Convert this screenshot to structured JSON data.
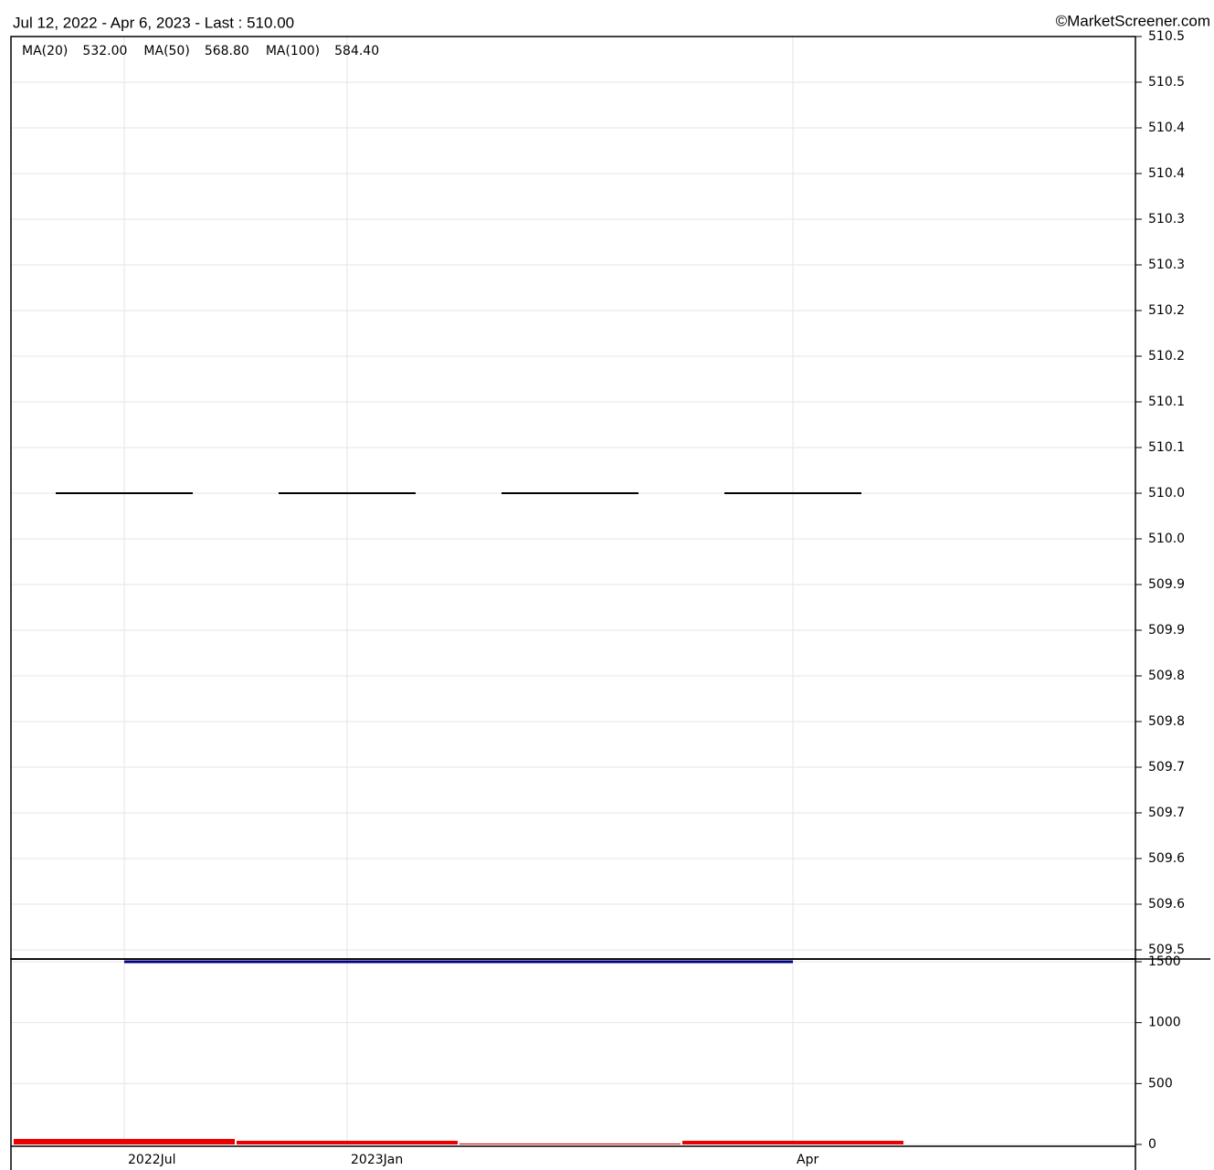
{
  "header": {
    "title": "Jul 12, 2022 - Apr 6, 2023 - Last : 510.00",
    "credit": "©MarketScreener.com"
  },
  "legend": [
    {
      "name": "MA(20)",
      "value": "532.00",
      "name_color": "#6633cc",
      "color": "#3333ee"
    },
    {
      "name": "MA(50)",
      "value": "568.80",
      "name_color": "#ee33ee",
      "color": "#ee33ee"
    },
    {
      "name": "MA(100)",
      "value": "584.40",
      "name_color": "#ffaa44",
      "color": "#ffaa44"
    }
  ],
  "chart_data": [
    {
      "type": "ohlc",
      "values": [
        510,
        510,
        510,
        510
      ],
      "color": "#000000",
      "ylim": [
        509.5,
        510.5
      ],
      "yticks": [
        509.5,
        {
          "value": 509.55,
          "label": "509.6"
        },
        509.6,
        {
          "value": 509.65,
          "label": "509.7"
        },
        509.7,
        {
          "value": 509.75,
          "label": "509.8"
        },
        509.8,
        {
          "value": 509.85,
          "label": "509.9"
        },
        509.9,
        {
          "value": 509.95,
          "label": "510.0"
        },
        {
          "value": 510,
          "label": "510.0"
        },
        {
          "value": 510.05,
          "label": "510.1"
        },
        510.1,
        {
          "value": 510.15,
          "label": "510.2"
        },
        510.2,
        {
          "value": 510.25,
          "label": "510.3"
        },
        510.3,
        {
          "value": 510.35,
          "label": "510.4"
        },
        510.4,
        {
          "value": 510.45,
          "label": "510.5"
        },
        510.5
      ],
      "grid": true
    },
    {
      "type": "bar",
      "categories": [
        "2022Jul",
        "2023Jan",
        null,
        "Apr"
      ],
      "values": [
        45,
        30,
        8,
        30
      ],
      "color": "#ee0000",
      "average_values": [
        1500,
        1500,
        1500,
        1500
      ],
      "average_color": "#000080",
      "ylim": [
        0,
        1500
      ],
      "yticks": [
        0,
        500,
        1000,
        1500
      ],
      "grid": true
    }
  ]
}
